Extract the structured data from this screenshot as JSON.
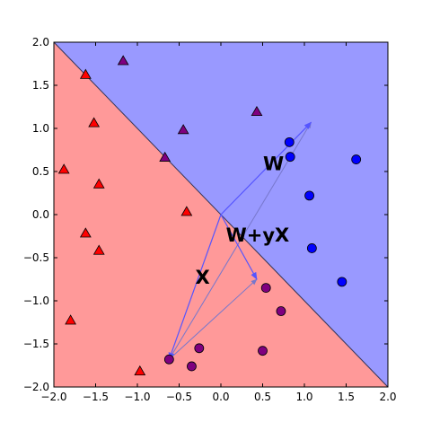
{
  "chart_data": {
    "type": "scatter",
    "xlim": [
      -2.0,
      2.0
    ],
    "ylim": [
      -2.0,
      2.0
    ],
    "x_ticks": [
      "−2.0",
      "−1.5",
      "−1.0",
      "−0.5",
      "0.0",
      "0.5",
      "1.0",
      "1.5",
      "2.0"
    ],
    "x_tick_values": [
      -2.0,
      -1.5,
      -1.0,
      -0.5,
      0.0,
      0.5,
      1.0,
      1.5,
      2.0
    ],
    "y_ticks": [
      "2.0",
      "1.5",
      "1.0",
      "0.5",
      "0.0",
      "−0.5",
      "−1.0",
      "−1.5",
      "−2.0"
    ],
    "y_tick_values": [
      2.0,
      1.5,
      1.0,
      0.5,
      0.0,
      -0.5,
      -1.0,
      -1.5,
      -2.0
    ],
    "grid": false,
    "decision_boundary": {
      "from": [
        -2.0,
        2.0
      ],
      "to": [
        2.0,
        -2.0
      ]
    },
    "regions": {
      "upper": "#9999ff",
      "lower": "#ff9999"
    },
    "series": [
      {
        "marker": "triangle",
        "points": [
          [
            -1.62,
            1.62
          ],
          [
            -1.17,
            1.78
          ],
          [
            -1.52,
            1.06
          ],
          [
            -1.88,
            0.52
          ],
          [
            -1.46,
            0.35
          ],
          [
            -1.62,
            -0.22
          ],
          [
            -1.46,
            -0.42
          ],
          [
            -1.8,
            -1.23
          ],
          [
            -0.97,
            -1.82
          ],
          [
            -0.41,
            0.03
          ],
          [
            -0.67,
            0.66
          ],
          [
            -0.45,
            0.98
          ],
          [
            0.43,
            1.19
          ]
        ],
        "colors": [
          "red",
          "purple",
          "red",
          "red",
          "red",
          "red",
          "red",
          "red",
          "red",
          "red",
          "purple",
          "purple",
          "purple"
        ]
      },
      {
        "marker": "circle",
        "points": [
          [
            0.82,
            0.84
          ],
          [
            0.83,
            0.67
          ],
          [
            1.62,
            0.64
          ],
          [
            1.06,
            0.22
          ],
          [
            1.09,
            -0.39
          ],
          [
            1.45,
            -0.78
          ],
          [
            0.54,
            -0.85
          ],
          [
            0.72,
            -1.12
          ],
          [
            -0.26,
            -1.55
          ],
          [
            -0.62,
            -1.68
          ],
          [
            -0.35,
            -1.76
          ],
          [
            0.5,
            -1.58
          ]
        ],
        "colors": [
          "blue",
          "blue",
          "blue",
          "blue",
          "blue",
          "blue",
          "purple",
          "purple",
          "purple",
          "purple",
          "purple",
          "purple"
        ]
      }
    ],
    "vectors": [
      {
        "label": "W",
        "from": [
          0.0,
          0.0
        ],
        "to": [
          1.08,
          1.07
        ]
      },
      {
        "label": "X",
        "from": [
          0.0,
          0.0
        ],
        "to": [
          -0.62,
          -1.68
        ]
      },
      {
        "label": "W+yX",
        "from": [
          0.0,
          0.0
        ],
        "to": [
          0.43,
          -0.75
        ]
      }
    ],
    "annotations": [
      {
        "text": "W",
        "x": 0.63,
        "y": 0.58
      },
      {
        "text": "W+yX",
        "x": 0.44,
        "y": -0.25
      },
      {
        "text": "X",
        "x": -0.22,
        "y": -0.74
      }
    ],
    "colors": {
      "red": "#ff0000",
      "blue": "#0000ff",
      "purple": "#7f007f",
      "arrow": "#5555ff",
      "arrow_dim": "#7777cc",
      "boundary": "#333355"
    }
  }
}
